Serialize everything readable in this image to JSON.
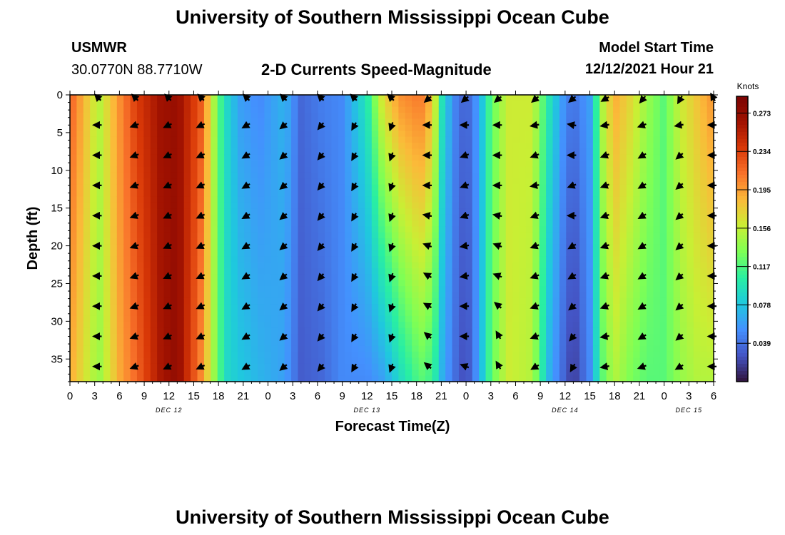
{
  "header": {
    "title_top": "University of Southern Mississippi Ocean Cube",
    "station": "USMWR",
    "coords": "30.0770N  88.7710W",
    "subtitle": "2-D Currents Speed-Magnitude",
    "model_start_label": "Model Start Time",
    "model_start_value": "12/12/2021 Hour 21",
    "title_bottom": "University of Southern Mississippi Ocean Cube"
  },
  "chart_data": {
    "type": "heatmap",
    "title": "2-D Currents Speed-Magnitude",
    "xlabel": "Forecast Time(Z)",
    "ylabel": "Depth (ft)",
    "x_ticks": [
      "0",
      "3",
      "6",
      "9",
      "12",
      "15",
      "18",
      "21",
      "0",
      "3",
      "6",
      "9",
      "12",
      "15",
      "18",
      "21",
      "0",
      "3",
      "6",
      "9",
      "12",
      "15",
      "18",
      "21",
      "0",
      "3",
      "6"
    ],
    "date_labels": [
      {
        "text": "DEC 12",
        "at_hour": 12
      },
      {
        "text": "DEC 13",
        "at_hour": 36
      },
      {
        "text": "DEC 14",
        "at_hour": 60
      },
      {
        "text": "DEC 15",
        "at_hour": 75
      }
    ],
    "x_range_hours": [
      0,
      78
    ],
    "y_ticks": [
      0,
      5,
      10,
      15,
      20,
      25,
      30,
      35
    ],
    "y_range_ft": [
      0,
      38
    ],
    "colorbar": {
      "title": "Knots",
      "ticks": [
        "0.273",
        "0.234",
        "0.195",
        "0.156",
        "0.117",
        "0.078",
        "0.039"
      ],
      "range": [
        0.0,
        0.29
      ],
      "colors": [
        "#30123b",
        "#4454c4",
        "#4490fe",
        "#1fc8de",
        "#29efa2",
        "#7eff55",
        "#c9ef34",
        "#fbba39",
        "#f9732b",
        "#d93807",
        "#a11201",
        "#7a0403"
      ]
    },
    "speed_profile": [
      {
        "hour": 0,
        "surface": 0.22,
        "bottom": 0.19
      },
      {
        "hour": 3.5,
        "surface": 0.15,
        "bottom": 0.14
      },
      {
        "hour": 6,
        "surface": 0.2,
        "bottom": 0.19
      },
      {
        "hour": 8,
        "surface": 0.235,
        "bottom": 0.215
      },
      {
        "hour": 11,
        "surface": 0.265,
        "bottom": 0.26
      },
      {
        "hour": 13,
        "surface": 0.27,
        "bottom": 0.275
      },
      {
        "hour": 16,
        "surface": 0.22,
        "bottom": 0.2
      },
      {
        "hour": 18,
        "surface": 0.12,
        "bottom": 0.12
      },
      {
        "hour": 19,
        "surface": 0.09,
        "bottom": 0.09
      },
      {
        "hour": 20.5,
        "surface": 0.06,
        "bottom": 0.08
      },
      {
        "hour": 23,
        "surface": 0.05,
        "bottom": 0.07
      },
      {
        "hour": 26,
        "surface": 0.07,
        "bottom": 0.06
      },
      {
        "hour": 28,
        "surface": 0.035,
        "bottom": 0.03
      },
      {
        "hour": 30.5,
        "surface": 0.045,
        "bottom": 0.035
      },
      {
        "hour": 33,
        "surface": 0.05,
        "bottom": 0.05
      },
      {
        "hour": 36,
        "surface": 0.1,
        "bottom": 0.05
      },
      {
        "hour": 38,
        "surface": 0.17,
        "bottom": 0.06
      },
      {
        "hour": 40,
        "surface": 0.2,
        "bottom": 0.09
      },
      {
        "hour": 42.5,
        "surface": 0.21,
        "bottom": 0.12
      },
      {
        "hour": 44,
        "surface": 0.18,
        "bottom": 0.11
      },
      {
        "hour": 45,
        "surface": 0.1,
        "bottom": 0.07
      },
      {
        "hour": 46.5,
        "surface": 0.05,
        "bottom": 0.04
      },
      {
        "hour": 48,
        "surface": 0.03,
        "bottom": 0.02
      },
      {
        "hour": 49.5,
        "surface": 0.06,
        "bottom": 0.06
      },
      {
        "hour": 51,
        "surface": 0.12,
        "bottom": 0.12
      },
      {
        "hour": 53,
        "surface": 0.16,
        "bottom": 0.16
      },
      {
        "hour": 56,
        "surface": 0.16,
        "bottom": 0.15
      },
      {
        "hour": 58,
        "surface": 0.1,
        "bottom": 0.07
      },
      {
        "hour": 60,
        "surface": 0.05,
        "bottom": 0.03
      },
      {
        "hour": 61,
        "surface": 0.04,
        "bottom": 0.015
      },
      {
        "hour": 63,
        "surface": 0.06,
        "bottom": 0.05
      },
      {
        "hour": 64.5,
        "surface": 0.15,
        "bottom": 0.12
      },
      {
        "hour": 66,
        "surface": 0.19,
        "bottom": 0.15
      },
      {
        "hour": 68,
        "surface": 0.17,
        "bottom": 0.13
      },
      {
        "hour": 70,
        "surface": 0.14,
        "bottom": 0.12
      },
      {
        "hour": 72,
        "surface": 0.12,
        "bottom": 0.12
      },
      {
        "hour": 74,
        "surface": 0.16,
        "bottom": 0.14
      },
      {
        "hour": 76,
        "surface": 0.18,
        "bottom": 0.15
      },
      {
        "hour": 78,
        "surface": 0.2,
        "bottom": 0.15
      }
    ],
    "vector_hours": [
      3.5,
      8,
      12,
      16,
      21.5,
      26,
      30.5,
      34.5,
      39,
      43.5,
      48,
      52,
      56.5,
      61,
      65,
      69.5,
      74,
      78
    ],
    "vector_depths_ft": [
      0,
      4,
      8,
      12,
      16,
      20,
      24,
      28,
      32,
      36
    ],
    "vector_directions_deg": [
      [
        45,
        45,
        45,
        45,
        45,
        45,
        45,
        45,
        45,
        -40,
        -40,
        -40,
        -40,
        -40,
        -30,
        -50,
        -60,
        60
      ],
      [
        0,
        -20,
        -25,
        -25,
        -30,
        -40,
        -50,
        -60,
        -70,
        0,
        0,
        0,
        -10,
        10,
        -10,
        -20,
        -10,
        0
      ],
      [
        0,
        -20,
        -25,
        -25,
        -30,
        -40,
        -50,
        -60,
        -70,
        0,
        -20,
        0,
        -20,
        0,
        -20,
        -30,
        -40,
        0
      ],
      [
        0,
        -20,
        -25,
        -25,
        -30,
        -40,
        -50,
        -60,
        -70,
        0,
        -20,
        0,
        -10,
        -20,
        -20,
        -30,
        -40,
        0
      ],
      [
        0,
        -20,
        -25,
        -25,
        -30,
        -40,
        -50,
        -60,
        -70,
        10,
        -20,
        10,
        -20,
        0,
        -20,
        -30,
        -40,
        0
      ],
      [
        0,
        -20,
        -25,
        -25,
        -30,
        -40,
        -50,
        -60,
        -70,
        20,
        -10,
        20,
        -20,
        -30,
        -20,
        -30,
        -40,
        0
      ],
      [
        0,
        -20,
        -25,
        -25,
        -30,
        -40,
        -50,
        -60,
        -70,
        30,
        -10,
        20,
        -20,
        -30,
        -20,
        -30,
        -40,
        0
      ],
      [
        0,
        -20,
        -25,
        -25,
        -30,
        -40,
        -50,
        -60,
        -70,
        30,
        0,
        40,
        -20,
        -40,
        -20,
        -30,
        -40,
        0
      ],
      [
        0,
        -20,
        -25,
        -25,
        -30,
        -40,
        -50,
        -60,
        -70,
        40,
        0,
        60,
        -20,
        -50,
        -10,
        -30,
        -40,
        0
      ],
      [
        0,
        -20,
        -25,
        -25,
        -30,
        -40,
        -50,
        -60,
        -70,
        40,
        20,
        60,
        -30,
        -60,
        -10,
        -20,
        -30,
        0
      ]
    ]
  }
}
